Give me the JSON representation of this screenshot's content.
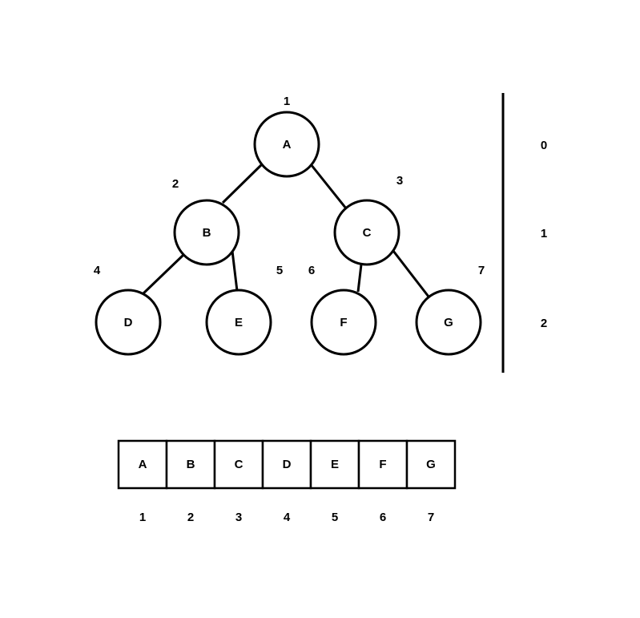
{
  "tree": {
    "nodes": [
      {
        "label": "A",
        "index": "1"
      },
      {
        "label": "B",
        "index": "2"
      },
      {
        "label": "C",
        "index": "3"
      },
      {
        "label": "D",
        "index": "4"
      },
      {
        "label": "E",
        "index": "5"
      },
      {
        "label": "F",
        "index": "6"
      },
      {
        "label": "G",
        "index": "7"
      }
    ],
    "edges": [
      [
        "A",
        "B"
      ],
      [
        "A",
        "C"
      ],
      [
        "B",
        "D"
      ],
      [
        "B",
        "E"
      ],
      [
        "C",
        "F"
      ],
      [
        "C",
        "G"
      ]
    ]
  },
  "levels": [
    "0",
    "1",
    "2"
  ],
  "array": {
    "cells": [
      "A",
      "B",
      "C",
      "D",
      "E",
      "F",
      "G"
    ],
    "indices": [
      "1",
      "2",
      "3",
      "4",
      "5",
      "6",
      "7"
    ]
  }
}
